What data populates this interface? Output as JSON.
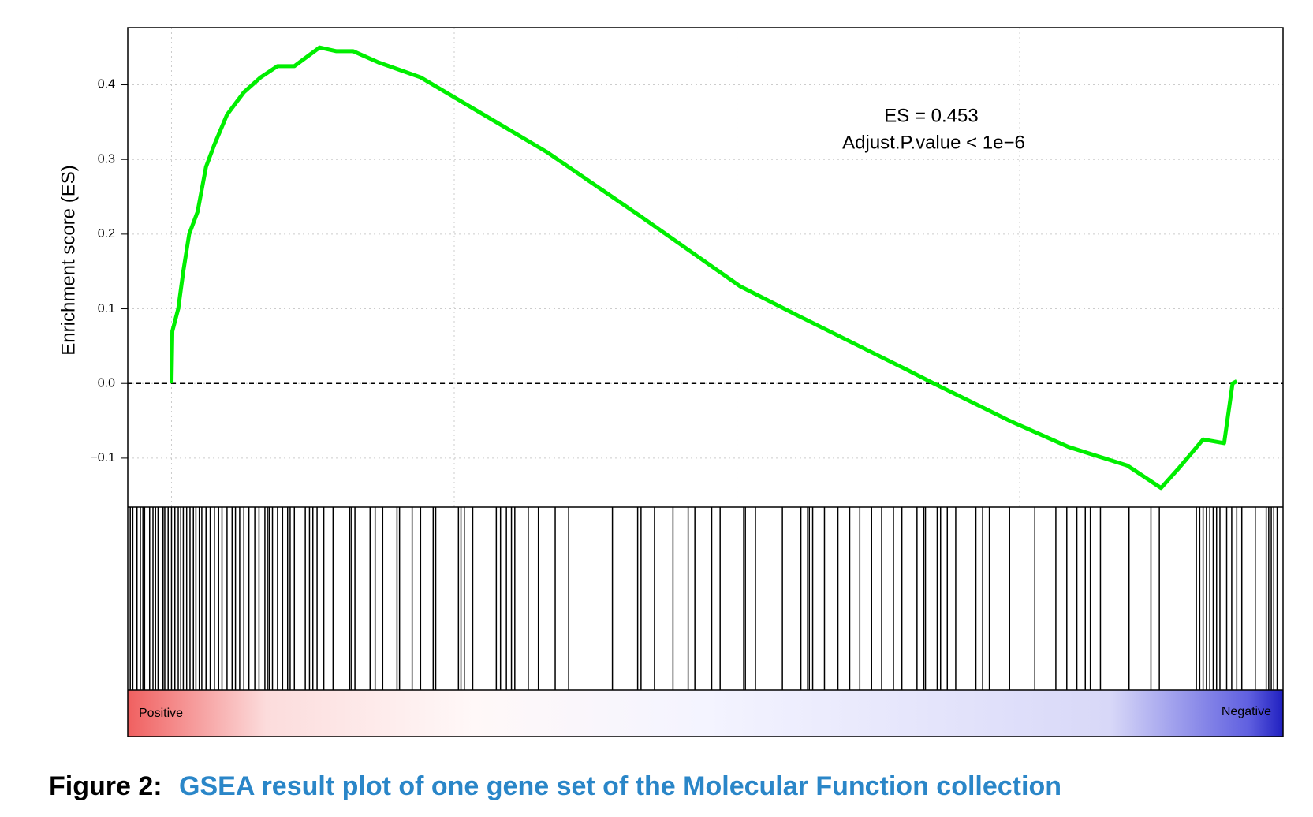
{
  "chart_data": {
    "type": "gsea",
    "ylabel": "Enrichment score (ES)",
    "annotations": [
      "ES =  0.453",
      "Adjust.P.value  < 1e−6"
    ],
    "low_label": "Positive",
    "high_label": "Negative",
    "color": "#00ee00",
    "grid": true,
    "xlim": [
      -52,
      1321
    ],
    "ylim": [
      -0.1656,
      0.4766
    ],
    "yticks": [
      {
        "value": -0.1,
        "label": "−0.1"
      },
      {
        "value": 0,
        "label": "0.0"
      },
      0.1,
      0.2,
      0.3,
      0.4
    ],
    "x_gridlines": [
      0,
      336,
      672,
      1008
    ],
    "x": [
      0,
      1,
      8,
      14,
      21,
      31,
      41,
      51,
      66,
      86,
      106,
      126,
      146,
      176,
      196,
      216,
      246,
      296,
      356,
      446,
      556,
      676,
      746,
      871,
      906,
      996,
      1066,
      1136,
      1176,
      1196,
      1226,
      1251,
      1261,
      1266
    ],
    "values": [
      0,
      0.07,
      0.1,
      0.15,
      0.2,
      0.23,
      0.29,
      0.32,
      0.36,
      0.39,
      0.41,
      0.425,
      0.425,
      0.45,
      0.445,
      0.445,
      0.43,
      0.41,
      0.37,
      0.31,
      0.225,
      0.13,
      0.09,
      0.02,
      0,
      -0.05,
      -0.085,
      -0.11,
      -0.14,
      -0.115,
      -0.075,
      -0.08,
      0,
      0.003
    ],
    "hits": [
      -49,
      -46,
      -41,
      -37,
      -34,
      -32,
      -26,
      -22,
      -19,
      -16,
      -11,
      -10,
      -8,
      -4,
      0,
      4,
      8,
      11,
      14,
      18,
      22,
      26,
      29,
      33,
      36,
      41,
      46,
      51,
      56,
      60,
      66,
      72,
      76,
      81,
      86,
      92,
      99,
      104,
      111,
      114,
      116,
      120,
      126,
      132,
      138,
      141,
      146,
      159,
      164,
      168,
      173,
      181,
      192,
      212,
      214,
      218,
      236,
      242,
      251,
      268,
      271,
      286,
      296,
      311,
      314,
      341,
      344,
      348,
      358,
      386,
      391,
      398,
      404,
      408,
      424,
      436,
      456,
      472,
      524,
      554,
      558,
      574,
      596,
      614,
      622,
      642,
      652,
      680,
      682,
      694,
      726,
      748,
      756,
      758,
      762,
      776,
      792,
      806,
      818,
      832,
      844,
      858,
      868,
      886,
      894,
      896,
      910,
      914,
      922,
      932,
      956,
      964,
      972,
      996,
      1026,
      1051,
      1064,
      1076,
      1086,
      1092,
      1104,
      1138,
      1164,
      1174,
      1218,
      1222,
      1226,
      1230,
      1234,
      1238,
      1242,
      1246,
      1254,
      1260,
      1266,
      1272,
      1288,
      1301,
      1304,
      1307,
      1310,
      1314
    ]
  },
  "caption": {
    "label": "Figure 2:",
    "text": "GSEA result plot of one gene set of the Molecular Function collection"
  }
}
